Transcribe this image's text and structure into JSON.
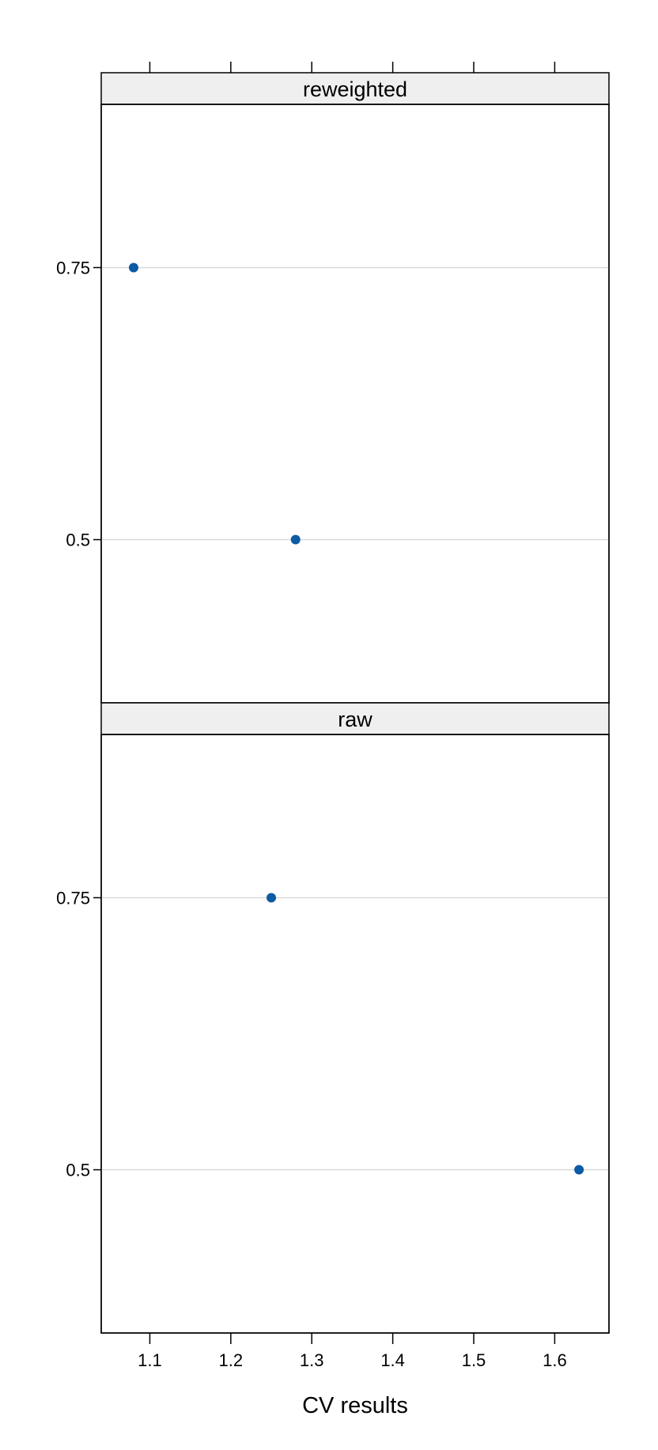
{
  "chart_data": {
    "type": "scatter",
    "xlabel": "CV results",
    "ylabel": "",
    "xlim": [
      1.04,
      1.667
    ],
    "xticks": [
      1.1,
      1.2,
      1.3,
      1.4,
      1.5,
      1.6
    ],
    "xtick_labels": [
      "1.1",
      "1.2",
      "1.3",
      "1.4",
      "1.5",
      "1.6"
    ],
    "ylim": [
      0.35,
      0.9
    ],
    "yticks": [
      0.5,
      0.75
    ],
    "ytick_labels": [
      "0.5",
      "0.75"
    ],
    "grid": "horizontal",
    "point_color": "#0d5ba4",
    "panels": [
      {
        "strip": "reweighted",
        "points": [
          {
            "x": 1.08,
            "y": 0.75
          },
          {
            "x": 1.28,
            "y": 0.5
          }
        ]
      },
      {
        "strip": "raw",
        "points": [
          {
            "x": 1.25,
            "y": 0.75
          },
          {
            "x": 1.63,
            "y": 0.5
          }
        ]
      }
    ]
  }
}
